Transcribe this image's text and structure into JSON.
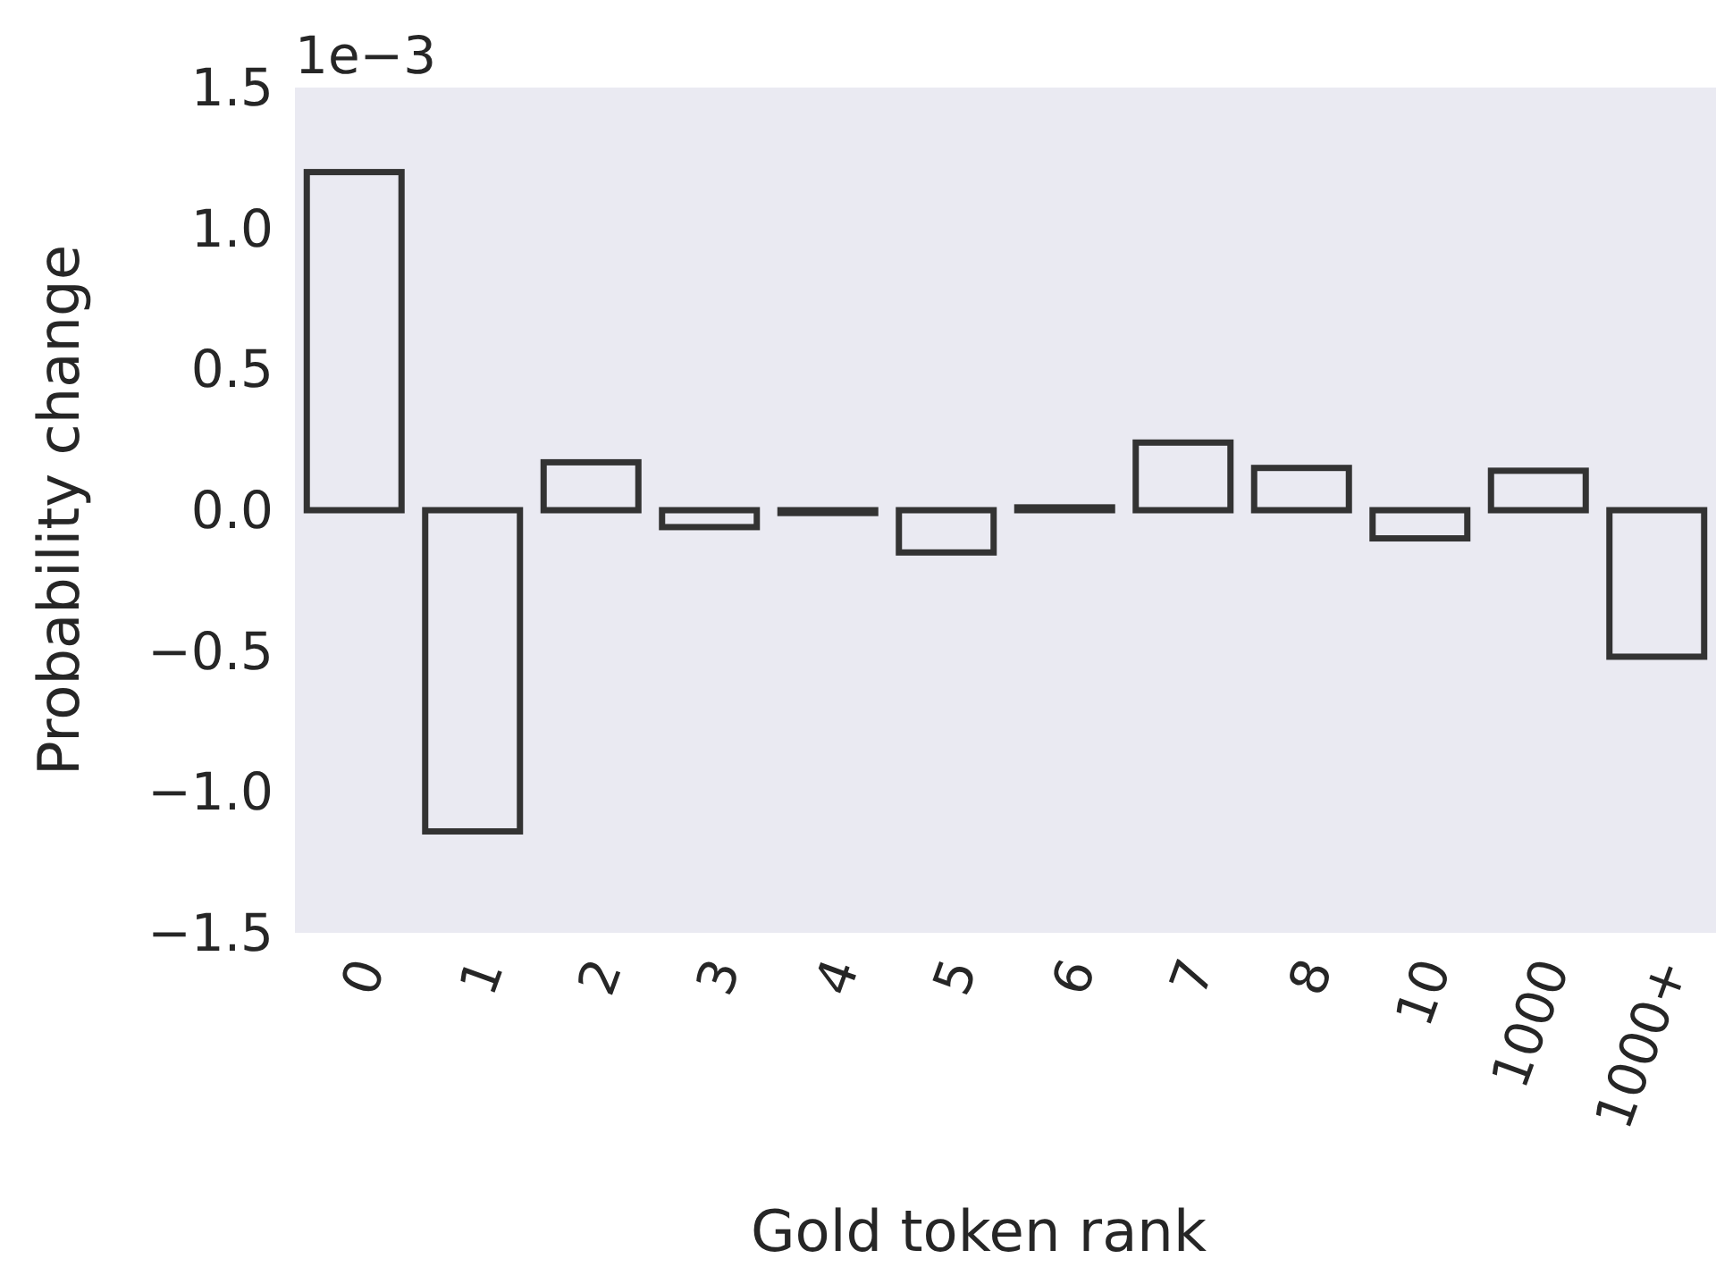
{
  "chart_data": {
    "type": "bar",
    "xlabel": "Gold token rank",
    "ylabel": "Probability change",
    "categories": [
      "0",
      "1",
      "2",
      "3",
      "4",
      "5",
      "6",
      "7",
      "8",
      "10",
      "1000",
      "1000+"
    ],
    "values": [
      1.2,
      -1.14,
      0.17,
      -0.06,
      -0.01,
      -0.15,
      0.01,
      0.24,
      0.15,
      -0.1,
      0.14,
      -0.52
    ],
    "color": "#333333",
    "ylim": [
      -1.5,
      1.5
    ],
    "yticks": [
      {
        "value": -1.5,
        "label": "−1.5"
      },
      {
        "value": -1,
        "label": "−1.0"
      },
      {
        "value": -0.5,
        "label": "−0.5"
      },
      {
        "value": 0,
        "label": "0.0"
      },
      {
        "value": 0.5,
        "label": "0.5"
      },
      {
        "value": 1,
        "label": "1.0"
      },
      {
        "value": 1.5,
        "label": "1.5"
      }
    ],
    "annotations": [
      "1e−3"
    ],
    "grid": false
  }
}
